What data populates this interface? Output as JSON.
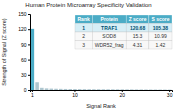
{
  "chart_data": {
    "type": "bar",
    "title": "Human Protein Microarray Specificity Validation",
    "xlabel": "Signal Rank",
    "ylabel": "Strength of Signal (Z score)",
    "categories": [
      "1",
      null,
      null,
      null,
      null,
      null,
      null,
      null,
      null,
      "10",
      null,
      null,
      null,
      null,
      null,
      null,
      null,
      null,
      null,
      "20",
      null,
      null,
      null,
      null,
      null,
      null,
      null,
      null,
      null,
      "30"
    ],
    "values": [
      120.68,
      15.3,
      4.31,
      3.2,
      2.8,
      2.5,
      2.3,
      2.1,
      2.0,
      1.9,
      1.8,
      1.7,
      1.6,
      1.55,
      1.5,
      1.45,
      1.4,
      1.35,
      1.3,
      1.25,
      1.2,
      1.15,
      1.1,
      1.05,
      1.0,
      0.95,
      0.9,
      0.85,
      0.8,
      0.75
    ],
    "colors": [
      "#4bacc6",
      "#aec6cf",
      "#aec6cf",
      "#aec6cf",
      "#aec6cf",
      "#aec6cf",
      "#aec6cf",
      "#aec6cf",
      "#aec6cf",
      "#aec6cf",
      "#aec6cf",
      "#aec6cf",
      "#aec6cf",
      "#aec6cf",
      "#aec6cf",
      "#aec6cf",
      "#aec6cf",
      "#aec6cf",
      "#aec6cf",
      "#aec6cf",
      "#aec6cf",
      "#aec6cf",
      "#aec6cf",
      "#aec6cf",
      "#aec6cf",
      "#aec6cf",
      "#aec6cf",
      "#aec6cf",
      "#aec6cf",
      "#aec6cf"
    ],
    "ylim": [
      0,
      150
    ],
    "yticks": [
      0,
      30,
      60,
      90,
      120,
      150
    ],
    "table": {
      "columns": [
        "Rank",
        "Protein",
        "Z score",
        "S score"
      ],
      "rows": [
        [
          "1",
          "TRAF1",
          "120.68",
          "105.38"
        ],
        [
          "2",
          "SOD8",
          "15.3",
          "10.99"
        ],
        [
          "3",
          "WDR52_frag",
          "4.31",
          "1.42"
        ]
      ]
    }
  }
}
